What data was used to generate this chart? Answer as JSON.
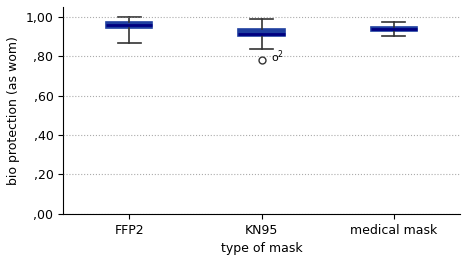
{
  "categories": [
    "FFP2",
    "KN95",
    "medical mask"
  ],
  "boxes": [
    {
      "whislo": 0.868,
      "q1": 0.942,
      "med": 0.96,
      "q3": 0.973,
      "whishi": 0.999
    },
    {
      "whislo": 0.835,
      "q1": 0.9,
      "med": 0.914,
      "q3": 0.94,
      "whishi": 0.99,
      "outliers": [
        0.78
      ]
    },
    {
      "whislo": 0.905,
      "q1": 0.93,
      "med": 0.94,
      "q3": 0.95,
      "whishi": 0.975
    }
  ],
  "box_color": "#1f3f9f",
  "median_color": "#000080",
  "whisker_color": "#333333",
  "cap_color": "#333333",
  "outlier_color": "#333333",
  "ylabel": "bio protection (as wom",
  "xlabel": "type of mask",
  "ylim": [
    0.0,
    1.05
  ],
  "yticks": [
    0.0,
    0.2,
    0.4,
    0.6,
    0.8,
    1.0
  ],
  "ytick_labels": [
    ",00",
    ",20",
    ",40",
    ",60",
    ",80",
    "1,00"
  ],
  "background_color": "#ffffff",
  "grid_color": "#888888",
  "title": ""
}
